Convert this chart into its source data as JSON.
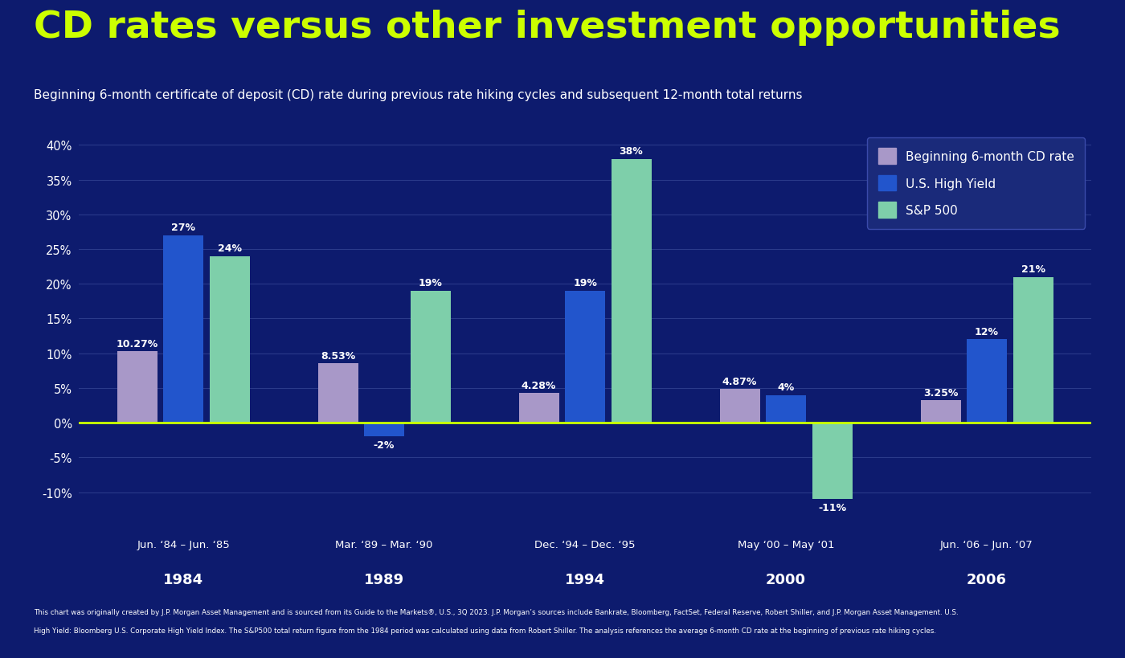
{
  "title": "CD rates versus other investment opportunities",
  "subtitle": "Beginning 6-month certificate of deposit (CD) rate during previous rate hiking cycles and subsequent 12-month total returns",
  "background_color": "#0d1b6e",
  "plot_bg_color": "#0d1b6e",
  "title_color": "#ccff00",
  "subtitle_color": "#ffffff",
  "text_color": "#ffffff",
  "grid_color": "#2a3a8a",
  "zero_line_color": "#ccff00",
  "categories": [
    "1984",
    "1989",
    "1994",
    "2000",
    "2006"
  ],
  "sublabels": [
    "Jun. ‘84 – Jun. ‘85",
    "Mar. ‘89 – Mar. ‘90",
    "Dec. ‘94 – Dec. ‘95",
    "May ‘00 – May ‘01",
    "Jun. ‘06 – Jun. ‘07"
  ],
  "cd_rates": [
    10.27,
    8.53,
    4.28,
    4.87,
    3.25
  ],
  "high_yield": [
    27,
    -2,
    19,
    4,
    12
  ],
  "sp500": [
    24,
    19,
    38,
    -11,
    21
  ],
  "cd_color": "#a898c8",
  "hy_color": "#2255cc",
  "sp_color": "#7ecfaa",
  "cd_label": "Beginning 6-month CD rate",
  "hy_label": "U.S. High Yield",
  "sp_label": "S&P 500",
  "ylim": [
    -13,
    42
  ],
  "yticks": [
    -10,
    -5,
    0,
    5,
    10,
    15,
    20,
    25,
    30,
    35,
    40
  ],
  "footnote_line1": "This chart was originally created by J.P. Morgan Asset Management and is sourced from its Guide to the Markets®, U.S., 3Q 2023. J.P. Morgan’s sources include Bankrate, Bloomberg, FactSet, Federal Reserve, Robert Shiller, and J.P. Morgan Asset Management. U.S.",
  "footnote_line2": "High Yield: Bloomberg U.S. Corporate High Yield Index. The S&P500 total return figure from the 1984 period was calculated using data from Robert Shiller. The analysis references the average 6-month CD rate at the beginning of previous rate hiking cycles."
}
